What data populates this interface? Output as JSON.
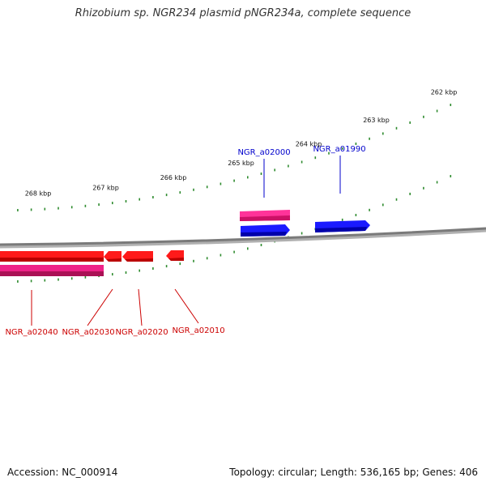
{
  "title": "Rhizobium sp. NGR234 plasmid pNGR234a, complete sequence",
  "footer": {
    "accession": "Accession: NC_000914",
    "summary": "Topology: circular; Length: 536,165 bp; Genes: 406"
  },
  "colors": {
    "backbone": "#808080",
    "tick": "#2e8b2e",
    "forward_gene": "#1010ee",
    "forward_gene_other": "#ee2288",
    "reverse_gene": "#ee1111",
    "reverse_gene_other": "#dd2277",
    "forward_label": "#0000cc",
    "reverse_label": "#cc0000"
  },
  "scale": {
    "unit": "kbp",
    "labels": [
      "268 kbp",
      "267 kbp",
      "266 kbp",
      "265 kbp",
      "264 kbp",
      "263 kbp",
      "262 kbp"
    ]
  },
  "genes": {
    "forward": [
      {
        "name": "NGR_a02000",
        "strand": "+"
      },
      {
        "name": "NGR_a01990",
        "strand": "+"
      }
    ],
    "reverse": [
      {
        "name": "NGR_a02040",
        "strand": "-"
      },
      {
        "name": "NGR_a02030",
        "strand": "-"
      },
      {
        "name": "NGR_a02020",
        "strand": "-"
      },
      {
        "name": "NGR_a02010",
        "strand": "-"
      }
    ]
  }
}
